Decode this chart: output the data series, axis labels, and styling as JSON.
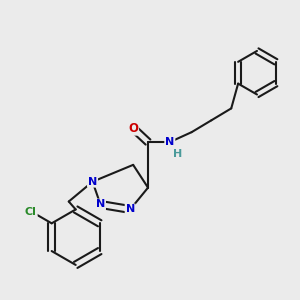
{
  "bg_color": "#ebebeb",
  "atom_colors": {
    "N": "#0000cc",
    "O": "#cc0000",
    "H": "#4a9a9a",
    "Cl": "#2a8a2a"
  },
  "bond_color": "#1a1a1a",
  "bond_width": 1.5,
  "figsize": [
    3.0,
    3.0
  ],
  "dpi": 100
}
